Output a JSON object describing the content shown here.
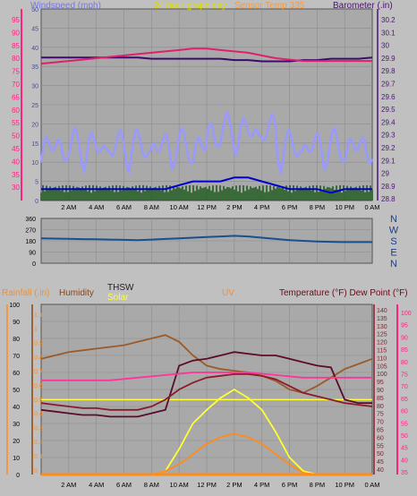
{
  "colors": {
    "page_bg": "#c0c0c0",
    "plot_bg": "#a9a9a9",
    "grid": "#8c8c8c",
    "wind_avg": "#0000cc",
    "wind_gust": "#9999ff",
    "wind_bar": "#1f5a1f",
    "barometer": "#3d0a6b",
    "temp_top": "#e0206a",
    "direction": "#1a4f8f",
    "compass": "#1a3f8f",
    "pink_axis": "#ff2080",
    "purple_axis": "#4b1370",
    "orange": "#ff8c1a",
    "brown": "#8b4513",
    "yellow": "#ffff33",
    "thsw": "#5c0a2a",
    "temp": "#8b1a2a",
    "dewpoint": "#ff3399",
    "humidity": "#9b5a2a",
    "uv": "#ff8c1a"
  },
  "panel1": {
    "labels": {
      "windspeed": "Windspeed (mph)",
      "graph_title": "24 hour graph day",
      "overlap": "Sensor Temp 335",
      "barometer": "Barometer (.in)"
    },
    "left_ticks": [
      "95",
      "90",
      "85",
      "80",
      "75",
      "70",
      "65",
      "60",
      "55",
      "50",
      "45",
      "40",
      "35",
      "30"
    ],
    "inner_ticks": [
      "50",
      "45",
      "40",
      "35",
      "30",
      "25",
      "20",
      "15",
      "10",
      "5",
      "0"
    ],
    "right_ticks": [
      "30.2",
      "30.1",
      "30",
      "29.9",
      "29.8",
      "29.7",
      "29.6",
      "29.5",
      "29.4",
      "29.3",
      "29.2",
      "29.1",
      "29",
      "28.9",
      "28.8"
    ]
  },
  "panel2": {
    "left_ticks": [
      "360",
      "270",
      "180",
      "90",
      "0"
    ],
    "compass": [
      "N",
      "W",
      "S",
      "E",
      "N"
    ]
  },
  "panel3": {
    "labels": {
      "rainfall": "Rainfall (.in)",
      "humidity": "Humidity",
      "thsw": "THSW",
      "solar": "Solar",
      "uv": "UV",
      "temp_dew": "Temperature (°F) Dew Point (°F)"
    },
    "left_ticks": [
      "100",
      "90",
      "80",
      "70",
      "60",
      "50",
      "40",
      "30",
      "20",
      "10",
      "0"
    ],
    "rain_ticks": [
      "1.1",
      "1",
      "0.9",
      "0.8",
      "0.7",
      "0.6",
      "0.5",
      "0.4",
      "0.3",
      "0.2",
      "0.1",
      "0"
    ],
    "temp_ticks": [
      "140",
      "135",
      "130",
      "125",
      "120",
      "115",
      "110",
      "105",
      "100",
      "95",
      "90",
      "85",
      "80",
      "75",
      "70",
      "65",
      "60",
      "55",
      "50",
      "45",
      "40"
    ],
    "dew_ticks": [
      "100",
      "95",
      "90",
      "85",
      "80",
      "75",
      "70",
      "65",
      "60",
      "55",
      "50",
      "45",
      "40",
      "35"
    ]
  },
  "x_ticks": [
    "2 AM",
    "4 AM",
    "6 AM",
    "8 AM",
    "10 AM",
    "12 PM",
    "2 PM",
    "4 PM",
    "6 PM",
    "8 PM",
    "10 PM",
    "0 AM"
  ],
  "chart_data": [
    {
      "type": "line",
      "title": "24 hour graph day",
      "x": [
        0,
        1,
        2,
        3,
        4,
        5,
        6,
        7,
        8,
        9,
        10,
        11,
        12,
        13,
        14,
        15,
        16,
        17,
        18,
        19,
        20,
        21,
        22,
        23,
        24
      ],
      "series": [
        {
          "name": "Windspeed (mph)",
          "axis": "inner",
          "values": [
            3,
            3,
            3,
            3,
            3,
            3,
            3,
            3,
            3,
            3,
            4,
            5,
            5,
            5,
            6,
            6,
            5,
            4,
            3,
            3,
            3,
            2,
            3,
            3,
            3
          ]
        },
        {
          "name": "Barometer (.in)",
          "axis": "right",
          "values": [
            29.87,
            29.87,
            29.87,
            29.87,
            29.87,
            29.87,
            29.87,
            29.87,
            29.86,
            29.86,
            29.86,
            29.86,
            29.86,
            29.86,
            29.85,
            29.85,
            29.84,
            29.84,
            29.84,
            29.85,
            29.85,
            29.86,
            29.86,
            29.86,
            29.87
          ]
        },
        {
          "axis": "left",
          "values": [
            76,
            76.5,
            77,
            77.5,
            78,
            78.5,
            79,
            79.5,
            80,
            80.5,
            81,
            81.5,
            81.5,
            81,
            80.5,
            80,
            79,
            78,
            77.5,
            77,
            77,
            77,
            77,
            77,
            77
          ]
        }
      ],
      "ylim_left": [
        26,
        96
      ],
      "ylim_inner": [
        0,
        50
      ],
      "ylim_right": [
        28.75,
        30.25
      ]
    },
    {
      "type": "line",
      "x": [
        0,
        1,
        2,
        3,
        4,
        5,
        6,
        7,
        8,
        9,
        10,
        11,
        12,
        13,
        14,
        15,
        16,
        17,
        18,
        19,
        20,
        21,
        22,
        23,
        24
      ],
      "series": [
        {
          "name": "Wind direction",
          "values": [
            200,
            198,
            196,
            194,
            192,
            190,
            188,
            186,
            190,
            195,
            200,
            205,
            210,
            215,
            220,
            215,
            205,
            195,
            185,
            180,
            175,
            172,
            170,
            170,
            170
          ]
        }
      ],
      "ylim": [
        0,
        360
      ]
    },
    {
      "type": "line",
      "x": [
        0,
        1,
        2,
        3,
        4,
        5,
        6,
        7,
        8,
        9,
        10,
        11,
        12,
        13,
        14,
        15,
        16,
        17,
        18,
        19,
        20,
        21,
        22,
        23,
        24
      ],
      "series": [
        {
          "name": "Humidity",
          "axis": "left",
          "values": [
            68,
            70,
            72,
            73,
            74,
            75,
            76,
            78,
            80,
            82,
            78,
            70,
            64,
            62,
            61,
            60,
            58,
            55,
            50,
            48,
            52,
            57,
            62,
            65,
            68
          ]
        },
        {
          "name": "THSW",
          "axis": "temp",
          "values": [
            78,
            77,
            76,
            75,
            75,
            74,
            74,
            74,
            76,
            78,
            104,
            107,
            108,
            110,
            112,
            111,
            110,
            110,
            108,
            106,
            104,
            103,
            84,
            82,
            82
          ]
        },
        {
          "name": "Solar",
          "axis": "left",
          "values": [
            0,
            0,
            0,
            0,
            0,
            0,
            0,
            0,
            0,
            2,
            15,
            30,
            38,
            45,
            50,
            45,
            38,
            25,
            10,
            2,
            0,
            0,
            0,
            0,
            0
          ]
        },
        {
          "name": "Temperature (°F)",
          "axis": "temp",
          "values": [
            82,
            81,
            80,
            79,
            79,
            78,
            78,
            78,
            80,
            84,
            90,
            94,
            97,
            98,
            99,
            99,
            98,
            96,
            92,
            88,
            86,
            84,
            82,
            81,
            80
          ]
        },
        {
          "name": "Dew Point (°F)",
          "axis": "dew",
          "values": [
            71,
            71,
            71,
            71,
            71,
            71,
            71.5,
            72,
            72.5,
            73,
            73.5,
            74,
            74,
            74,
            74,
            74,
            73.5,
            73,
            72.5,
            72,
            72,
            72,
            72,
            72,
            72
          ]
        },
        {
          "name": "UV",
          "axis": "left",
          "values": [
            0,
            0,
            0,
            0,
            0,
            0,
            0,
            0,
            0,
            2,
            6,
            12,
            18,
            22,
            24,
            22,
            18,
            12,
            6,
            1,
            0,
            0,
            0,
            0,
            0
          ]
        },
        {
          "name": "Rainfall (.in)",
          "axis": "rain",
          "values": [
            0,
            0,
            0,
            0,
            0,
            0,
            0,
            0,
            0,
            0,
            0,
            0,
            0,
            0,
            0,
            0,
            0,
            0,
            0,
            0,
            0,
            0,
            0,
            0,
            0
          ]
        }
      ],
      "ylim_left": [
        0,
        100
      ],
      "ylim_temp": [
        40,
        140
      ],
      "ylim_dew": [
        35,
        100
      ],
      "ylim_rain": [
        0,
        1.1
      ]
    }
  ]
}
